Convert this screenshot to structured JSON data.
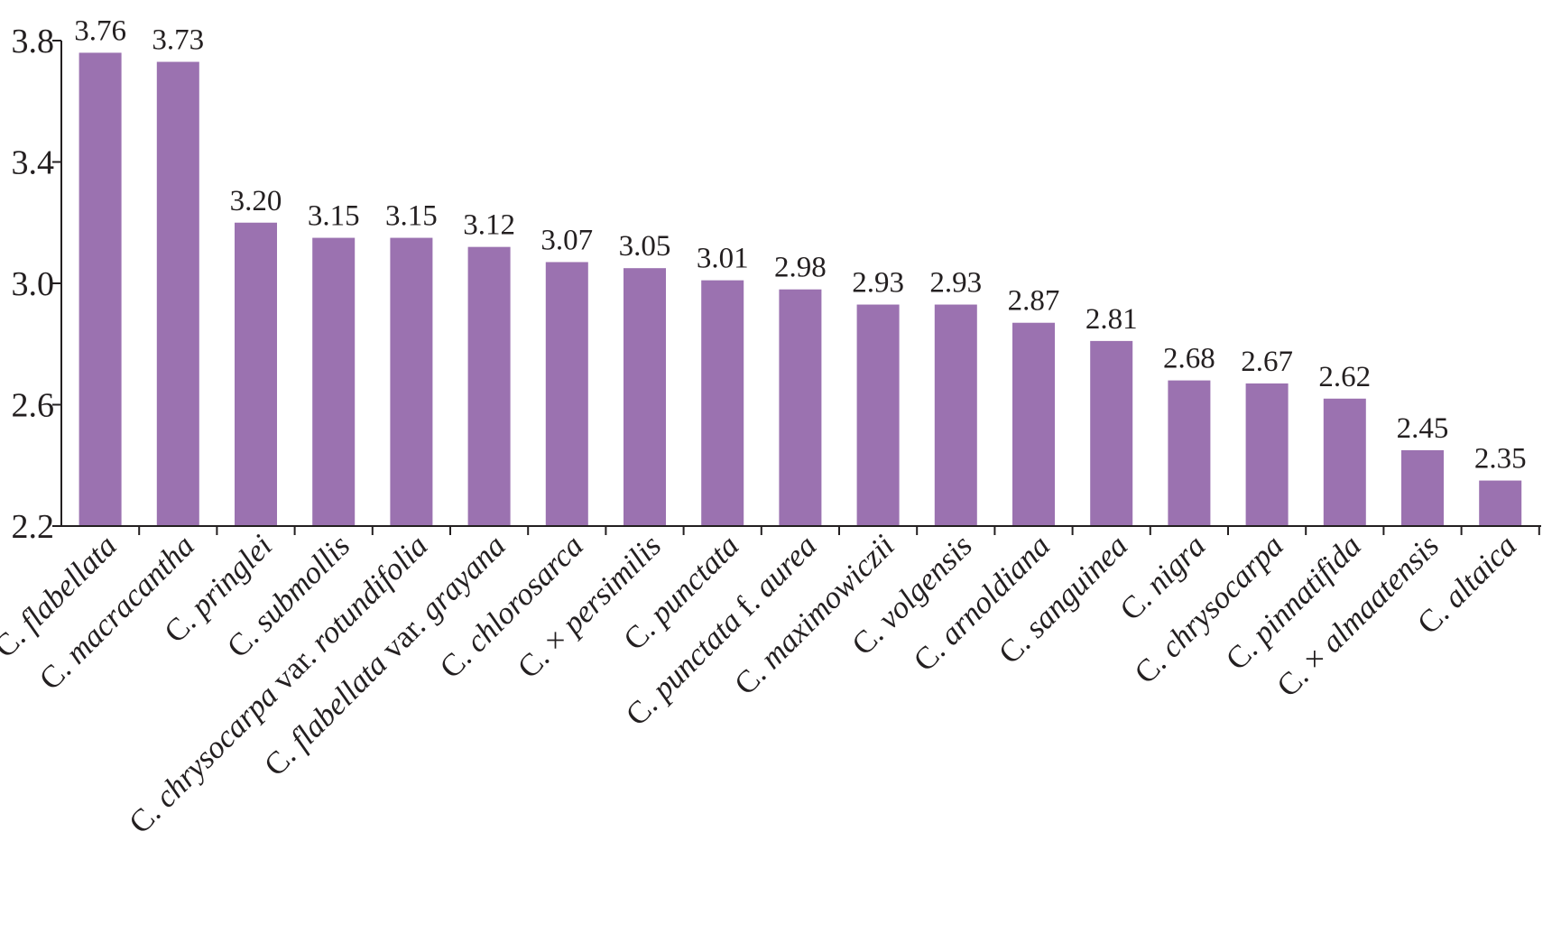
{
  "chart_data": {
    "type": "bar",
    "title": "",
    "xlabel": "",
    "ylabel": "",
    "ylim": [
      2.2,
      3.8
    ],
    "yticks": [
      "2.2",
      "2.6",
      "3.0",
      "3.4",
      "3.8"
    ],
    "ytick_values": [
      2.2,
      2.6,
      3.0,
      3.4,
      3.8
    ],
    "bar_color": "#9b72b0",
    "grid": false,
    "categories": [
      [
        {
          "t": "C. ",
          "i": false
        },
        {
          "t": "flabellata",
          "i": true
        }
      ],
      [
        {
          "t": "C. ",
          "i": false
        },
        {
          "t": "macracantha",
          "i": true
        }
      ],
      [
        {
          "t": "C. ",
          "i": false
        },
        {
          "t": "pringlei",
          "i": true
        }
      ],
      [
        {
          "t": "C. ",
          "i": false
        },
        {
          "t": "submollis",
          "i": true
        }
      ],
      [
        {
          "t": "C. ",
          "i": false
        },
        {
          "t": "chrysocarpa",
          "i": true
        },
        {
          "t": " var. ",
          "i": false
        },
        {
          "t": "rotundifolia",
          "i": true
        }
      ],
      [
        {
          "t": "C. ",
          "i": false
        },
        {
          "t": "flabellata",
          "i": true
        },
        {
          "t": " var. ",
          "i": false
        },
        {
          "t": "grayana",
          "i": true
        }
      ],
      [
        {
          "t": "C. ",
          "i": false
        },
        {
          "t": "chlorosarca",
          "i": true
        }
      ],
      [
        {
          "t": "C. × ",
          "i": false
        },
        {
          "t": "persimilis",
          "i": true
        }
      ],
      [
        {
          "t": "C. ",
          "i": false
        },
        {
          "t": "punctata",
          "i": true
        }
      ],
      [
        {
          "t": "C. ",
          "i": false
        },
        {
          "t": "punctata",
          "i": true
        },
        {
          "t": " f. ",
          "i": false
        },
        {
          "t": "aurea",
          "i": true
        }
      ],
      [
        {
          "t": "C. ",
          "i": false
        },
        {
          "t": "maximowiczii",
          "i": true
        }
      ],
      [
        {
          "t": "C. ",
          "i": false
        },
        {
          "t": "volgensis",
          "i": true
        }
      ],
      [
        {
          "t": "C. ",
          "i": false
        },
        {
          "t": "arnoldiana",
          "i": true
        }
      ],
      [
        {
          "t": "C. ",
          "i": false
        },
        {
          "t": "sanguinea",
          "i": true
        }
      ],
      [
        {
          "t": "C. ",
          "i": false
        },
        {
          "t": "nigra",
          "i": true
        }
      ],
      [
        {
          "t": "C. ",
          "i": false
        },
        {
          "t": "chrysocarpa",
          "i": true
        }
      ],
      [
        {
          "t": "C. ",
          "i": false
        },
        {
          "t": "pinnatifida",
          "i": true
        }
      ],
      [
        {
          "t": "C. × ",
          "i": false
        },
        {
          "t": "almaatensis",
          "i": true
        }
      ],
      [
        {
          "t": "C. ",
          "i": false
        },
        {
          "t": "altaica",
          "i": true
        }
      ]
    ],
    "values": [
      3.76,
      3.73,
      3.2,
      3.15,
      3.15,
      3.12,
      3.07,
      3.05,
      3.01,
      2.98,
      2.93,
      2.93,
      2.87,
      2.81,
      2.68,
      2.67,
      2.62,
      2.45,
      2.35
    ],
    "value_labels": [
      "3.76",
      "3.73",
      "3.20",
      "3.15",
      "3.15",
      "3.12",
      "3.07",
      "3.05",
      "3.01",
      "2.98",
      "2.93",
      "2.93",
      "2.87",
      "2.81",
      "2.68",
      "2.67",
      "2.62",
      "2.45",
      "2.35"
    ]
  }
}
